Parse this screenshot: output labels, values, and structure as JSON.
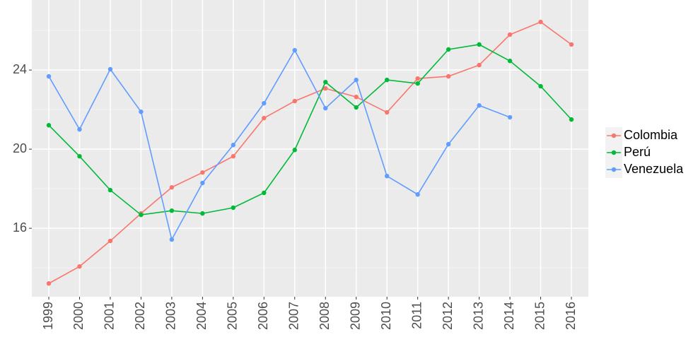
{
  "chart_data": {
    "type": "line",
    "categories": [
      "1999",
      "2000",
      "2001",
      "2002",
      "2003",
      "2004",
      "2005",
      "2006",
      "2007",
      "2008",
      "2009",
      "2010",
      "2011",
      "2012",
      "2013",
      "2014",
      "2015",
      "2016"
    ],
    "series": [
      {
        "name": "Colombia",
        "color": "#f8766d",
        "values": [
          13.21,
          14.07,
          15.36,
          16.75,
          18.07,
          18.82,
          19.64,
          21.57,
          22.43,
          23.07,
          22.64,
          21.86,
          23.57,
          23.68,
          24.25,
          25.79,
          26.43,
          25.29
        ]
      },
      {
        "name": "Perú",
        "color": "#00ba38",
        "values": [
          21.21,
          19.64,
          17.93,
          16.68,
          16.89,
          16.75,
          17.04,
          17.79,
          19.96,
          23.39,
          22.11,
          23.5,
          23.32,
          25.04,
          25.29,
          24.46,
          23.18,
          21.5
        ]
      },
      {
        "name": "Venezuela",
        "color": "#619cff",
        "values": [
          23.68,
          21.0,
          24.04,
          21.89,
          15.43,
          18.29,
          20.21,
          22.32,
          25.0,
          22.07,
          23.5,
          18.64,
          17.71,
          20.25,
          22.21,
          21.61,
          null,
          null
        ]
      }
    ],
    "ylim": [
      12.54,
      27.54
    ],
    "yticks": [
      16,
      20,
      24
    ],
    "yminor": [
      14,
      18,
      22,
      26
    ],
    "grid": true,
    "legend": "right"
  }
}
